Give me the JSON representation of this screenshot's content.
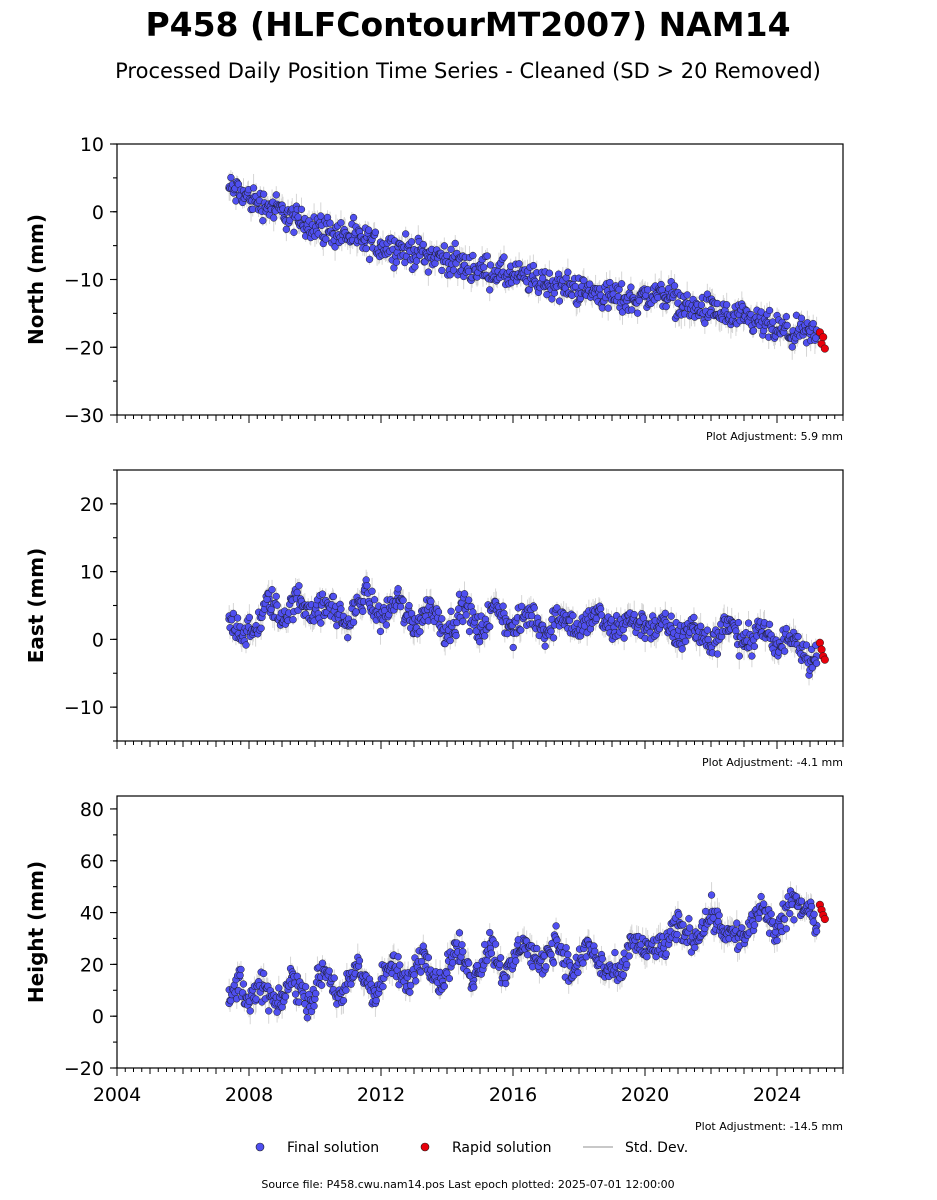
{
  "figure": {
    "title": "P458 (HLFContourMT2007) NAM14",
    "subtitle": "Processed Daily Position Time Series - Cleaned (SD > 20 Removed)",
    "source_text": "Source file: P458.cwu.nam14.pos  Last epoch plotted: 2025-07-01 12:00:00"
  },
  "legend": {
    "final_label": "Final solution",
    "rapid_label": "Rapid solution",
    "std_label": "Std. Dev."
  },
  "colors": {
    "final": "#4f4ff0",
    "rapid": "#e8000b",
    "std_dev": "#b5b5b5",
    "marker_edge": "#1a1a1a"
  },
  "chart_data": [
    {
      "type": "scatter",
      "panel": "north",
      "ylabel": "North (mm)",
      "xlim": [
        2004,
        2026
      ],
      "ylim": [
        -30,
        10
      ],
      "xticks": [
        2004,
        2008,
        2012,
        2016,
        2020,
        2024
      ],
      "yticks": [
        10,
        0,
        -10,
        -20,
        -30
      ],
      "ytick_labels": [
        "10",
        "0",
        "−10",
        "−20",
        "−30"
      ],
      "adjustment": "Plot Adjustment: 5.9 mm",
      "series": [
        {
          "name": "Final solution",
          "x": [
            2007.4,
            2008.0,
            2008.5,
            2009.0,
            2009.5,
            2010.0,
            2010.5,
            2011.0,
            2011.5,
            2012.0,
            2012.5,
            2013.0,
            2013.5,
            2014.0,
            2014.5,
            2015.0,
            2015.5,
            2016.0,
            2016.5,
            2017.0,
            2017.5,
            2018.0,
            2018.5,
            2019.0,
            2019.5,
            2020.0,
            2020.7,
            2021.0,
            2021.5,
            2022.0,
            2022.5,
            2023.0,
            2023.5,
            2024.0,
            2024.5,
            2025.0,
            2025.2
          ],
          "y": [
            3.5,
            2.0,
            1.0,
            0.0,
            -1.5,
            -2.0,
            -3.0,
            -3.5,
            -4.5,
            -5.0,
            -5.5,
            -6.0,
            -6.5,
            -7.0,
            -8.0,
            -8.5,
            -9.0,
            -9.5,
            -10.0,
            -10.5,
            -11.0,
            -11.5,
            -12.0,
            -12.5,
            -13.0,
            -12.5,
            -12.0,
            -13.5,
            -14.5,
            -14.5,
            -15.5,
            -16.0,
            -16.5,
            -17.5,
            -18.0,
            -18.0,
            -18.5
          ]
        },
        {
          "name": "Rapid solution",
          "x": [
            2025.3,
            2025.35,
            2025.4,
            2025.45
          ],
          "y": [
            -17.8,
            -19.5,
            -18.5,
            -20.2
          ]
        }
      ]
    },
    {
      "type": "scatter",
      "panel": "east",
      "ylabel": "East (mm)",
      "xlim": [
        2004,
        2026
      ],
      "ylim": [
        -15,
        25
      ],
      "xticks": [
        2004,
        2008,
        2012,
        2016,
        2020,
        2024
      ],
      "yticks": [
        20,
        10,
        0,
        -10
      ],
      "ytick_labels": [
        "20",
        "10",
        "0",
        "−10"
      ],
      "adjustment": "Plot Adjustment: -4.1 mm",
      "series": [
        {
          "name": "Final solution",
          "x": [
            2007.4,
            2007.8,
            2008.2,
            2008.6,
            2009.0,
            2009.5,
            2010.0,
            2010.5,
            2011.0,
            2011.5,
            2012.0,
            2012.5,
            2013.0,
            2013.5,
            2014.0,
            2014.5,
            2015.0,
            2015.5,
            2016.0,
            2016.5,
            2017.0,
            2017.5,
            2018.0,
            2018.5,
            2019.0,
            2019.5,
            2020.0,
            2020.7,
            2021.0,
            2021.5,
            2022.0,
            2022.5,
            2023.0,
            2023.5,
            2024.0,
            2024.5,
            2025.0,
            2025.2
          ],
          "y": [
            3.0,
            1.0,
            1.0,
            6.0,
            3.0,
            6.0,
            4.0,
            5.0,
            2.0,
            7.0,
            3.0,
            6.0,
            2.0,
            5.0,
            1.0,
            5.0,
            1.0,
            5.0,
            1.0,
            4.0,
            1.0,
            4.0,
            1.0,
            4.0,
            1.0,
            3.0,
            2.0,
            2.0,
            0.0,
            2.0,
            -1.0,
            3.0,
            -1.0,
            2.0,
            -1.5,
            1.0,
            -3.0,
            -2.5
          ]
        },
        {
          "name": "Rapid solution",
          "x": [
            2025.3,
            2025.35,
            2025.4,
            2025.45
          ],
          "y": [
            -0.5,
            -1.5,
            -2.5,
            -3.0
          ]
        }
      ]
    },
    {
      "type": "scatter",
      "panel": "height",
      "ylabel": "Height (mm)",
      "xlim": [
        2004,
        2026
      ],
      "ylim": [
        -20,
        85
      ],
      "xticks": [
        2004,
        2008,
        2012,
        2016,
        2020,
        2024
      ],
      "xtick_labels": [
        "2004",
        "2008",
        "2012",
        "2016",
        "2020",
        "2024"
      ],
      "yticks": [
        80,
        60,
        40,
        20,
        0,
        -20
      ],
      "ytick_labels": [
        "80",
        "60",
        "40",
        "20",
        "0",
        "−20"
      ],
      "adjustment": "Plot Adjustment: -14.5 mm",
      "series": [
        {
          "name": "Final solution",
          "x": [
            2007.4,
            2007.7,
            2008.0,
            2008.4,
            2008.9,
            2009.3,
            2009.8,
            2010.3,
            2010.8,
            2011.3,
            2011.8,
            2012.3,
            2012.8,
            2013.3,
            2013.8,
            2014.3,
            2014.8,
            2015.3,
            2015.8,
            2016.3,
            2016.8,
            2017.3,
            2017.8,
            2018.3,
            2018.6,
            2019.3,
            2019.6,
            2020.0,
            2020.7,
            2021.0,
            2021.5,
            2022.0,
            2022.5,
            2023.0,
            2023.5,
            2024.0,
            2024.5,
            2025.0,
            2025.2
          ],
          "y": [
            5.0,
            15.0,
            5.0,
            12.0,
            3.0,
            15.0,
            5.0,
            18.0,
            6.0,
            20.0,
            8.0,
            20.0,
            12.0,
            25.0,
            12.0,
            27.0,
            14.0,
            28.0,
            15.0,
            30.0,
            18.0,
            30.0,
            16.0,
            28.0,
            20.0,
            15.0,
            30.0,
            25.0,
            28.0,
            35.0,
            30.0,
            40.0,
            32.0,
            30.0,
            42.0,
            32.0,
            45.0,
            40.0,
            35.0
          ]
        },
        {
          "name": "Rapid solution",
          "x": [
            2025.3,
            2025.35,
            2025.4,
            2025.45
          ],
          "y": [
            43.0,
            41.0,
            39.0,
            37.5
          ]
        }
      ]
    }
  ]
}
